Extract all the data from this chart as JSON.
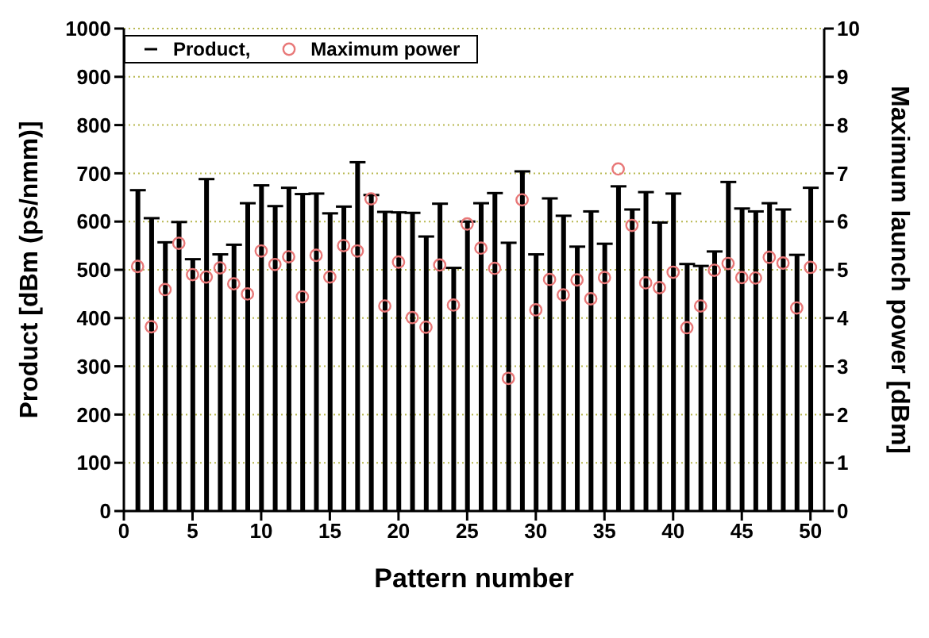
{
  "chart_data": {
    "type": "bar",
    "xlabel": "Pattern number",
    "ylabel": "Product [dBm (ps/nmm)]",
    "y2label": "Maximum launch power [dBm]",
    "x": [
      1,
      2,
      3,
      4,
      5,
      6,
      7,
      8,
      9,
      10,
      11,
      12,
      13,
      14,
      15,
      16,
      17,
      18,
      19,
      20,
      21,
      22,
      23,
      24,
      25,
      26,
      27,
      28,
      29,
      30,
      31,
      32,
      33,
      34,
      35,
      36,
      37,
      38,
      39,
      40,
      41,
      42,
      43,
      44,
      45,
      46,
      47,
      48,
      49,
      50
    ],
    "series": [
      {
        "name": "Product,",
        "color": "#000000",
        "values": [
          665,
          607,
          557,
          599,
          522,
          688,
          532,
          552,
          638,
          675,
          632,
          670,
          657,
          658,
          617,
          631,
          723,
          655,
          620,
          619,
          618,
          569,
          637,
          504,
          600,
          638,
          659,
          556,
          704,
          532,
          648,
          612,
          548,
          621,
          554,
          673,
          625,
          661,
          598,
          658,
          512,
          508,
          538,
          682,
          627,
          621,
          638,
          625,
          531,
          670
        ]
      },
      {
        "name": "Maximum power",
        "type": "scatter",
        "axis": "y2",
        "color": "#e87878",
        "values": [
          5.07,
          3.82,
          4.59,
          5.55,
          4.9,
          4.85,
          5.04,
          4.71,
          4.5,
          5.39,
          5.11,
          5.27,
          4.44,
          5.3,
          4.85,
          5.5,
          5.39,
          6.47,
          4.25,
          5.16,
          4.01,
          3.81,
          5.1,
          4.27,
          5.95,
          5.45,
          5.03,
          2.75,
          6.45,
          4.17,
          4.8,
          4.48,
          4.79,
          4.4,
          4.84,
          7.09,
          5.92,
          4.73,
          4.63,
          4.95,
          3.8,
          4.25,
          4.99,
          5.13,
          4.84,
          4.83,
          5.26,
          5.14,
          4.21,
          5.05
        ]
      }
    ],
    "xlim": [
      0,
      51
    ],
    "xticks": [
      0,
      5,
      10,
      15,
      20,
      25,
      30,
      35,
      40,
      45,
      50
    ],
    "ylim": [
      0,
      1000
    ],
    "yticks": [
      0,
      100,
      200,
      300,
      400,
      500,
      600,
      700,
      800,
      900,
      1000
    ],
    "y2lim": [
      0,
      10
    ],
    "y2ticks": [
      0,
      1,
      2,
      3,
      4,
      5,
      6,
      7,
      8,
      9,
      10
    ],
    "grid": "y",
    "legend": "top left",
    "marker": "circle"
  }
}
